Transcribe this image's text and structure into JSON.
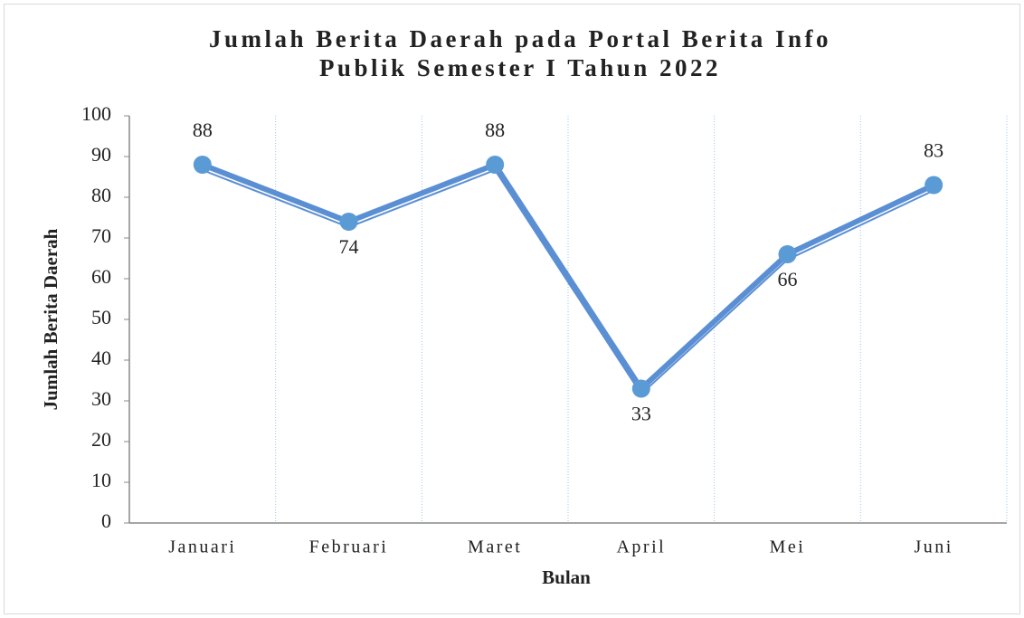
{
  "chart_data": {
    "type": "line",
    "title": [
      "Jumlah Berita Daerah pada Portal Berita Info",
      "Publik Semester I Tahun 2022"
    ],
    "x_label": "Bulan",
    "y_label": "Jumlah Berita Daerah",
    "categories": [
      "Januari",
      "Februari",
      "Maret",
      "April",
      "Mei",
      "Juni"
    ],
    "values": [
      88,
      74,
      88,
      33,
      66,
      83
    ],
    "color": "#5b8fd4",
    "ylim": [
      0,
      100
    ],
    "yticks": [
      0,
      10,
      20,
      30,
      40,
      50,
      60,
      70,
      80,
      90,
      100
    ],
    "grid": true
  }
}
